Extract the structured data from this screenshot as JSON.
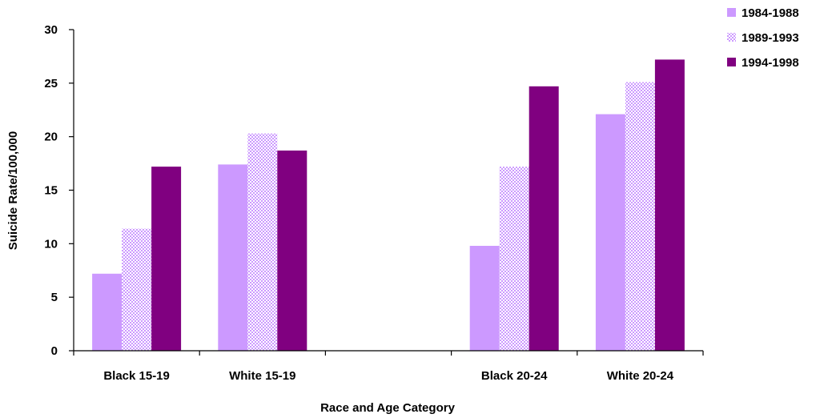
{
  "chart_data": {
    "type": "bar",
    "title": "",
    "xlabel": "Race and Age Category",
    "ylabel": "Suicide Rate/100,000",
    "ylim": [
      0,
      30
    ],
    "yticks": [
      "0",
      "5",
      "10",
      "15",
      "20",
      "25",
      "30"
    ],
    "categories": [
      "Black 15-19",
      "White 15-19",
      "",
      "Black 20-24",
      "White 20-24"
    ],
    "series": [
      {
        "name": "1984-1988",
        "values": [
          7.2,
          17.4,
          null,
          9.8,
          22.1
        ],
        "color": "#cc99ff",
        "pattern": "solid"
      },
      {
        "name": "1989-1993",
        "values": [
          11.4,
          20.3,
          null,
          17.2,
          25.1
        ],
        "color": "#cc99ff",
        "pattern": "checker"
      },
      {
        "name": "1994-1998",
        "values": [
          17.2,
          18.7,
          null,
          24.7,
          27.2
        ],
        "color": "#800080",
        "pattern": "solid"
      }
    ],
    "grid": false,
    "legend_position": "top-right"
  }
}
